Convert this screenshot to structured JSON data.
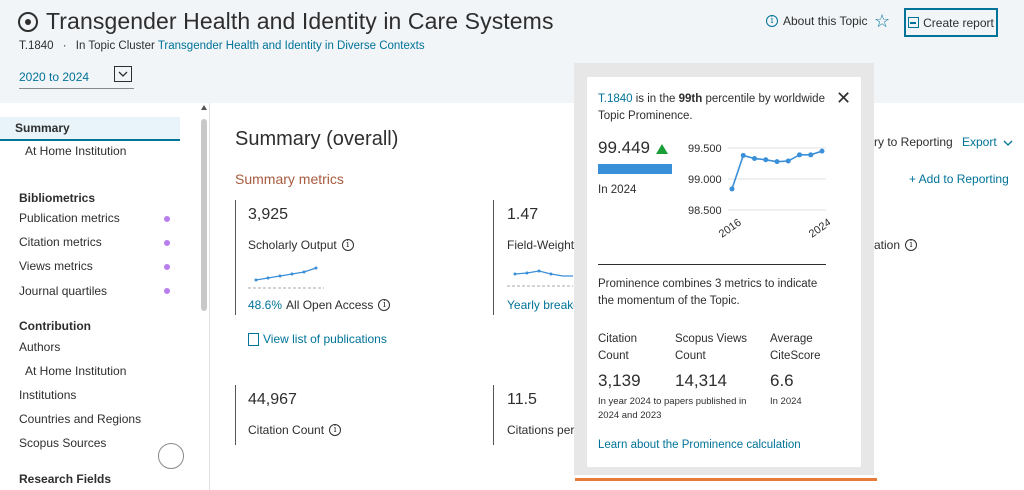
{
  "header": {
    "title": "Transgender Health and Identity in Care Systems",
    "topic_id": "T.1840",
    "separator": "·",
    "cluster_prefix": "In Topic Cluster",
    "cluster_link": "Transgender Health and Identity in Diverse Contexts",
    "date_range": "2020 to 2024",
    "about_label": "About this Topic",
    "create_report_label": "Create report"
  },
  "sidebar": {
    "summary": "Summary",
    "at_home_1": "At Home Institution",
    "bibliometrics_head": "Bibliometrics",
    "publication_metrics": "Publication metrics",
    "citation_metrics": "Citation metrics",
    "views_metrics": "Views metrics",
    "journal_quartiles": "Journal quartiles",
    "contribution_head": "Contribution",
    "authors": "Authors",
    "at_home_2": "At Home Institution",
    "institutions": "Institutions",
    "countries": "Countries and Regions",
    "scopus_sources": "Scopus Sources",
    "research_head": "Research Fields"
  },
  "main": {
    "title": "Summary (overall)",
    "section": "Summary metrics",
    "scholarly_value": "3,925",
    "scholarly_label": "Scholarly Output",
    "oa_pct": "48.6%",
    "oa_label": "All Open Access",
    "view_list": "View list of publications",
    "fw_value": "1.47",
    "fw_label": "Field-Weighte",
    "yearly": "Yearly breakdo",
    "citation_value": "44,967",
    "citation_label": "Citation Count",
    "cpp_value": "11.5",
    "cpp_label": "Citations per P",
    "reporting_label": "ry to Reporting",
    "export_label": "Export",
    "add_reporting": "+ Add to Reporting",
    "ation_label": "ation"
  },
  "popover": {
    "percentile_pre": "is in the",
    "percentile": "99th",
    "percentile_post": "percentile by worldwide Topic Prominence.",
    "prominence_value": "99.449",
    "prominence_fraction": 0.99449,
    "year_note": "In 2024",
    "y_ticks": [
      "99.500",
      "99.000",
      "98.500"
    ],
    "x_ticks": [
      "2016",
      "2024"
    ],
    "description": "Prominence combines 3 metrics to indicate the momentum of the Topic.",
    "stats": [
      {
        "head": "Citation Count",
        "value": "3,139",
        "note": "In year 2024 to papers published in 2024 and 2023"
      },
      {
        "head": "Scopus Views Count",
        "value": "14,314",
        "note": ""
      },
      {
        "head": "Average CiteScore",
        "value": "6.6",
        "note": "In 2024"
      }
    ],
    "learn_link": "Learn about the Prominence calculation"
  },
  "chart_data": {
    "type": "line",
    "x": [
      2016,
      2017,
      2018,
      2019,
      2020,
      2021,
      2022,
      2023,
      2024
    ],
    "values": [
      98.84,
      99.38,
      99.33,
      99.31,
      99.28,
      99.29,
      99.39,
      99.39,
      99.45
    ],
    "ylim": [
      98.5,
      99.5
    ]
  },
  "colors": {
    "accent": "#007398",
    "section_title": "#a85b3f",
    "line": "#3a8fd9",
    "up": "#1a9e38",
    "dot": "#b87ef0"
  }
}
